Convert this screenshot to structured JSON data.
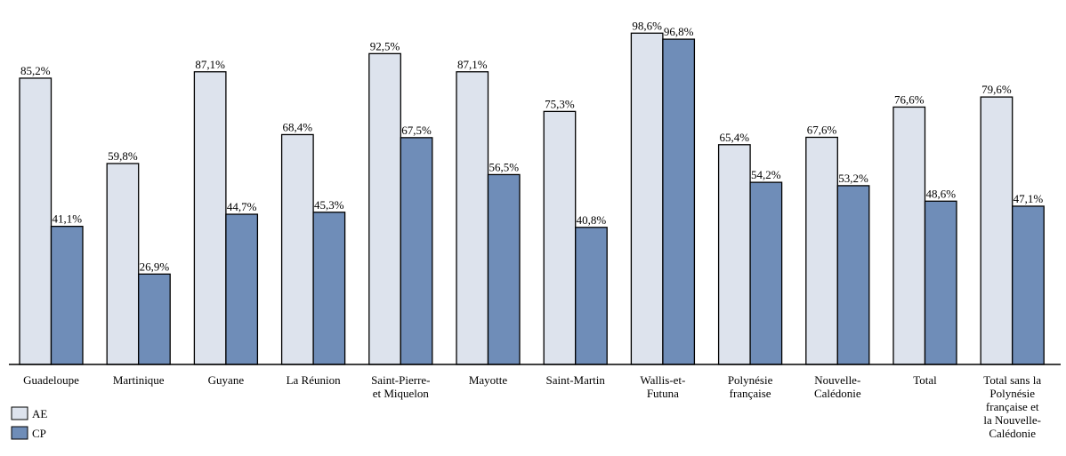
{
  "chart_data": {
    "type": "bar",
    "title": "",
    "xlabel": "",
    "ylabel": "",
    "ylim": [
      0,
      100
    ],
    "grid": false,
    "legend_position": "bottom-left",
    "categories": [
      [
        "Guadeloupe"
      ],
      [
        "Martinique"
      ],
      [
        "Guyane"
      ],
      [
        "La Réunion"
      ],
      [
        "Saint-Pierre-",
        "et Miquelon"
      ],
      [
        "Mayotte"
      ],
      [
        "Saint-Martin"
      ],
      [
        "Wallis-et-",
        "Futuna"
      ],
      [
        "Polynésie",
        "française"
      ],
      [
        "Nouvelle-",
        "Calédonie"
      ],
      [
        "Total"
      ],
      [
        "Total sans la",
        "Polynésie",
        "française et",
        "la Nouvelle-",
        "Calédonie"
      ]
    ],
    "series": [
      {
        "name": "AE",
        "color": "#dde3ed",
        "values": [
          85.2,
          59.8,
          87.1,
          68.4,
          92.5,
          87.1,
          75.3,
          98.6,
          65.4,
          67.6,
          76.6,
          79.6
        ],
        "labels": [
          "85,2%",
          "59,8%",
          "87,1%",
          "68,4%",
          "92,5%",
          "87,1%",
          "75,3%",
          "98,6%",
          "65,4%",
          "67,6%",
          "76,6%",
          "79,6%"
        ]
      },
      {
        "name": "CP",
        "color": "#6f8db8",
        "values": [
          41.1,
          26.9,
          44.7,
          45.3,
          67.5,
          56.5,
          40.8,
          96.8,
          54.2,
          53.2,
          48.6,
          47.1
        ],
        "labels": [
          "41,1%",
          "26,9%",
          "44,7%",
          "45,3%",
          "67,5%",
          "56,5%",
          "40,8%",
          "96,8%",
          "54,2%",
          "53,2%",
          "48,6%",
          "47,1%"
        ]
      }
    ]
  }
}
